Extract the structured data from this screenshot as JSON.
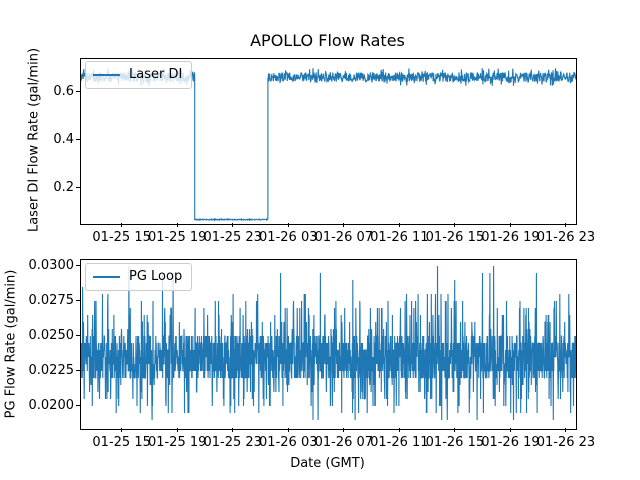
{
  "figure": {
    "title": "APOLLO Flow Rates",
    "xlabel": "Date (GMT)",
    "background": "#ffffff",
    "line_color": "#1f77b4",
    "text_color": "#000000"
  },
  "chart_data": [
    {
      "type": "line",
      "title": "APOLLO Flow Rates",
      "ylabel": "Laser DI Flow Rate (gal/min)",
      "legend": {
        "label": "Laser DI",
        "position": "upper left"
      },
      "grid": false,
      "x_axis_note": "hours after 01-25 12:00 GMT",
      "xlim": [
        0,
        35.65
      ],
      "ylim": [
        0.054,
        0.7405
      ],
      "xticks": [
        {
          "hour": 3,
          "label": "01-25 15"
        },
        {
          "hour": 7,
          "label": "01-25 19"
        },
        {
          "hour": 11,
          "label": "01-25 23"
        },
        {
          "hour": 15,
          "label": "01-26 03"
        },
        {
          "hour": 19,
          "label": "01-26 07"
        },
        {
          "hour": 23,
          "label": "01-26 11"
        },
        {
          "hour": 27,
          "label": "01-26 15"
        },
        {
          "hour": 31,
          "label": "01-26 19"
        },
        {
          "hour": 35,
          "label": "01-26 23"
        }
      ],
      "yticks": [
        {
          "v": 0.2,
          "label": "0.2"
        },
        {
          "v": 0.4,
          "label": "0.4"
        },
        {
          "v": 0.6,
          "label": "0.6"
        }
      ],
      "series": [
        {
          "name": "Laser DI",
          "color": "#1f77b4",
          "seed": 7,
          "points_per_hour": 40,
          "segments": [
            {
              "from": 0,
              "to": 8.19,
              "desc": "steady flow ~0.665 gal/min with noise",
              "base": [
                0.645,
                0.685
              ],
              "spikes": [
                {
                  "p": 0.03,
                  "range": [
                    0.687,
                    0.703
                  ]
                },
                {
                  "p": 0.03,
                  "range": [
                    0.628,
                    0.644
                  ]
                }
              ]
            },
            {
              "from": 8.19,
              "to": 13.46,
              "desc": "flow drop to ~0.072 gal/min (01-25 ~20:10 to 01-26 ~01:30)",
              "base": [
                0.0706,
                0.0744
              ],
              "spikes": []
            },
            {
              "from": 13.46,
              "to": 35.65,
              "desc": "steady flow ~0.665 gal/min with noise",
              "base": [
                0.645,
                0.685
              ],
              "spikes": [
                {
                  "p": 0.03,
                  "range": [
                    0.687,
                    0.703
                  ]
                },
                {
                  "p": 0.03,
                  "range": [
                    0.628,
                    0.644
                  ]
                }
              ]
            }
          ]
        }
      ]
    },
    {
      "type": "line",
      "ylabel": "PG Flow Rate (gal/min)",
      "xlabel": "Date (GMT)",
      "legend": {
        "label": "PG Loop",
        "position": "upper left"
      },
      "grid": false,
      "x_axis_note": "hours after 01-25 12:00 GMT",
      "xlim": [
        0,
        35.65
      ],
      "ylim": [
        0.01836,
        0.03043
      ],
      "xticks": [
        {
          "hour": 3,
          "label": "01-25 15"
        },
        {
          "hour": 7,
          "label": "01-25 19"
        },
        {
          "hour": 11,
          "label": "01-25 23"
        },
        {
          "hour": 15,
          "label": "01-26 03"
        },
        {
          "hour": 19,
          "label": "01-26 07"
        },
        {
          "hour": 23,
          "label": "01-26 11"
        },
        {
          "hour": 27,
          "label": "01-26 15"
        },
        {
          "hour": 31,
          "label": "01-26 19"
        },
        {
          "hour": 35,
          "label": "01-26 23"
        }
      ],
      "yticks": [
        {
          "v": 0.02,
          "label": "0.0200"
        },
        {
          "v": 0.0225,
          "label": "0.0225"
        },
        {
          "v": 0.025,
          "label": "0.0250"
        },
        {
          "v": 0.0275,
          "label": "0.0275"
        },
        {
          "v": 0.03,
          "label": "0.0300"
        }
      ],
      "series": [
        {
          "name": "PG Loop",
          "color": "#1f77b4",
          "seed": 13,
          "points_per_hour": 60,
          "segments": [
            {
              "from": 0,
              "to": 35.65,
              "desc": "dense band 0.0220-0.0250 gal/min, quantized steps of 0.0005, spikes up to 0.0300 and down to 0.0190",
              "base": [
                0.0218,
                0.0251
              ],
              "quant": 0.0005,
              "spikes": [
                {
                  "p": 0.08,
                  "range": [
                    0.0253,
                    0.0281
                  ]
                },
                {
                  "p": 0.006,
                  "range": [
                    0.0286,
                    0.0301
                  ]
                },
                {
                  "p": 0.08,
                  "range": [
                    0.019,
                    0.0216
                  ]
                }
              ]
            }
          ]
        }
      ]
    }
  ]
}
